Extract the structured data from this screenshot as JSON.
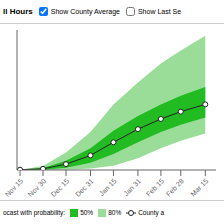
{
  "chart_data": {
    "type": "fan",
    "title": "ll Hours",
    "annotations": [
      "Show County Average",
      "Show Last Se",
      "ocast with probability:"
    ],
    "x": [
      0,
      15,
      30,
      46,
      61,
      77,
      92,
      105,
      121
    ],
    "series": [
      {
        "name": "50%",
        "type": "band",
        "color": "#22bb22",
        "low": [
          0,
          1,
          8,
          25,
          55,
          95,
          130,
          155,
          180
        ],
        "high": [
          1,
          7,
          32,
          75,
          135,
          185,
          225,
          255,
          285
        ]
      },
      {
        "name": "80%",
        "type": "band",
        "color": "#99dd99",
        "low": [
          0,
          0,
          1,
          5,
          15,
          40,
          75,
          100,
          125
        ],
        "high": [
          1,
          14,
          60,
          130,
          225,
          300,
          365,
          410,
          460
        ]
      },
      {
        "name": "County a",
        "type": "line",
        "color": "#222222",
        "marker": "o",
        "values": [
          1,
          4,
          20,
          50,
          95,
          140,
          175,
          200,
          225
        ]
      }
    ],
    "xlim": [
      -2,
      128
    ],
    "xticks": [
      {
        "value": 0,
        "label": "Nov 15"
      },
      {
        "value": 15,
        "label": "Nov 30"
      },
      {
        "value": 30,
        "label": "Dec 15"
      },
      {
        "value": 46,
        "label": "Dec 31"
      },
      {
        "value": 61,
        "label": "Jan 15"
      },
      {
        "value": 77,
        "label": "Jan 31"
      },
      {
        "value": 92,
        "label": "Feb 15"
      },
      {
        "value": 105,
        "label": "Feb 28"
      },
      {
        "value": 121,
        "label": "Mar 15"
      }
    ],
    "ylim": [
      0,
      480
    ],
    "tick_labels": "x",
    "grid": false,
    "legend": "bottom"
  }
}
